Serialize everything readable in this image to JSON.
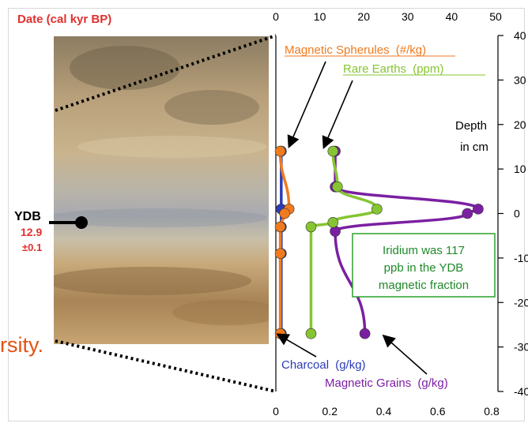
{
  "title": "Date (cal kyr BP)",
  "ydb": {
    "label": "YDB",
    "age": "12.9",
    "error": "±0.1"
  },
  "fragment_text": "rsity.",
  "annotation": {
    "lines": [
      "Iridium was 117",
      "ppb in the YDB",
      "magnetic fraction"
    ]
  },
  "depth_label": [
    "Depth",
    "in cm"
  ],
  "colors": {
    "spherules": "#f07a1e",
    "rare_earths": "#86c532",
    "grains": "#7b1fa2",
    "charcoal": "#2b3bb8",
    "title_red": "#e0302e",
    "annotation_border": "#2aa02a",
    "annotation_text": "#1f8a2a"
  },
  "chart_data": {
    "type": "line",
    "y_axis": {
      "label": "Depth in cm",
      "range": [
        -40,
        40
      ],
      "ticks": [
        40,
        30,
        20,
        10,
        0,
        -10,
        -20,
        -30,
        -40
      ]
    },
    "x_axis_top": {
      "range": [
        0,
        50
      ],
      "ticks": [
        0,
        10,
        20,
        30,
        40,
        50
      ]
    },
    "x_axis_bottom": {
      "range": [
        0,
        0.8
      ],
      "ticks": [
        0,
        0.2,
        0.4,
        0.6,
        0.8
      ]
    },
    "series": [
      {
        "name": "Magnetic Spherules (#/kg)",
        "axis": "top",
        "points": [
          [
            1,
            14
          ],
          [
            3,
            1
          ],
          [
            2,
            0
          ],
          [
            1,
            -3
          ],
          [
            1,
            -9
          ],
          [
            1,
            -27
          ]
        ]
      },
      {
        "name": "Rare Earths (ppm)",
        "axis": "top",
        "points": [
          [
            13,
            14
          ],
          [
            14,
            6
          ],
          [
            23,
            1
          ],
          [
            13,
            -2
          ],
          [
            8,
            -3
          ],
          [
            8,
            -27
          ]
        ]
      },
      {
        "name": "Magnetic Grains (g/kg)",
        "axis": "bottom",
        "points": [
          [
            0.22,
            14
          ],
          [
            0.22,
            6
          ],
          [
            0.75,
            1
          ],
          [
            0.71,
            0
          ],
          [
            0.22,
            -4
          ],
          [
            0.33,
            -27
          ]
        ]
      },
      {
        "name": "Charcoal (g/kg)",
        "axis": "bottom",
        "points": [
          [
            0.02,
            14
          ],
          [
            0.02,
            1
          ],
          [
            0.02,
            -3
          ],
          [
            0.02,
            -9
          ],
          [
            0.02,
            -27
          ]
        ]
      }
    ],
    "legend_labels": {
      "spherules": {
        "main": "Magnetic Spherules",
        "unit": "(#/kg)"
      },
      "rare_earths": {
        "main": "Rare Earths",
        "unit": "(ppm)"
      },
      "charcoal": {
        "main": "Charcoal",
        "unit": "(g/kg)"
      },
      "grains": {
        "main": "Magnetic Grains",
        "unit": "(g/kg)"
      }
    }
  }
}
